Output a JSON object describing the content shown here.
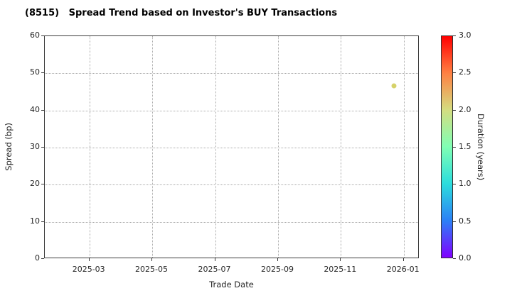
{
  "figure": {
    "title": "(8515)   Spread Trend based on Investor's BUY Transactions"
  },
  "axes": {
    "xlabel": "Trade Date",
    "ylabel": "Spread (bp)",
    "y_tick_labels": [
      "0",
      "10",
      "20",
      "30",
      "40",
      "50",
      "60"
    ],
    "x_tick_labels": [
      "2025-03",
      "2025-05",
      "2025-07",
      "2025-09",
      "2025-11",
      "2026-01"
    ]
  },
  "colorbar": {
    "label": "Duration (years)",
    "tick_labels": [
      "0.0",
      "0.5",
      "1.0",
      "1.5",
      "2.0",
      "2.5",
      "3.0"
    ],
    "colormap": "rainbow",
    "stops": [
      "#8000ff",
      "#2b80f6",
      "#2bdddd",
      "#80ffb4",
      "#d4dd80",
      "#ff8042",
      "#ff0000"
    ]
  },
  "chart_data": {
    "type": "scatter",
    "title": "(8515)   Spread Trend based on Investor's BUY Transactions",
    "xlabel": "Trade Date",
    "ylabel": "Spread (bp)",
    "ylim": [
      0,
      60
    ],
    "y_ticks": [
      0,
      10,
      20,
      30,
      40,
      50,
      60
    ],
    "x_tick_labels": [
      "2025-03",
      "2025-05",
      "2025-07",
      "2025-09",
      "2025-11",
      "2026-01"
    ],
    "grid": true,
    "grid_style": "dotted",
    "legend_position": "colorbar-right",
    "colorbar": {
      "label": "Duration (years)",
      "range": [
        0.0,
        3.0
      ],
      "ticks": [
        0.0,
        0.5,
        1.0,
        1.5,
        2.0,
        2.5,
        3.0
      ],
      "colormap": "rainbow"
    },
    "points": [
      {
        "x": "2025-12-26",
        "x_frac": 0.936,
        "y": 46.6,
        "duration_years": 2.1,
        "color": "#d6d269"
      }
    ]
  }
}
